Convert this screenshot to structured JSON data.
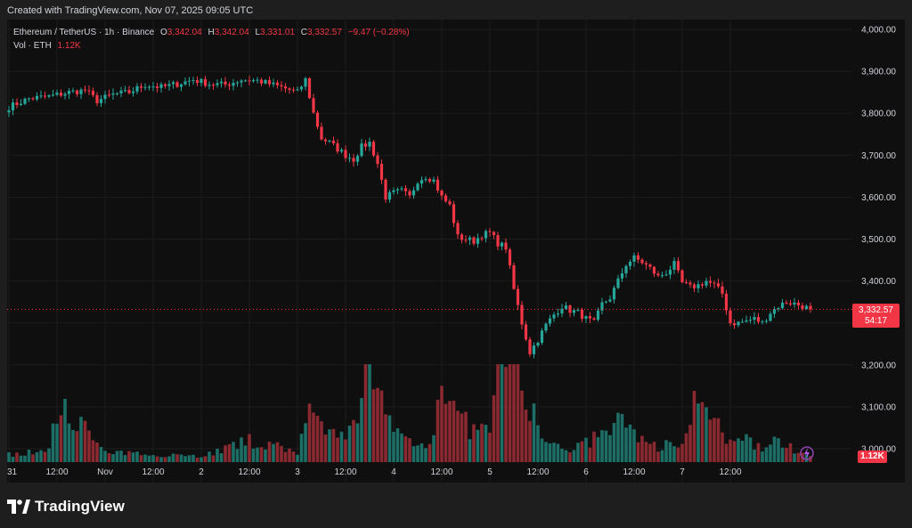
{
  "header": {
    "created_text": "Created with TradingView.com, Nov 07, 2025 09:05 UTC"
  },
  "legend": {
    "symbol": "Ethereum / TetherUS · 1h · Binance",
    "o_label": "O",
    "o_value": "3,342.04",
    "h_label": "H",
    "h_value": "3,342.04",
    "l_label": "L",
    "l_value": "3,331.01",
    "c_label": "C",
    "c_value": "3,332.57",
    "change": "−9.47 (−0.28%)",
    "vol_label": "Vol · ETH",
    "vol_value": "1.12K"
  },
  "price_badge": {
    "price": "3,332.57",
    "countdown": "54:17"
  },
  "volume_badge": {
    "value": "1.12K"
  },
  "footer": {
    "brand": "TradingView"
  },
  "colors": {
    "up": "#26a69a",
    "down": "#f23645",
    "vol_up": "#1d6e66",
    "vol_down": "#8a2a30",
    "panel": "#0f0f0f",
    "grid": "#1c1c1c",
    "axis_text": "#d1d4dc"
  },
  "chart_data": {
    "type": "candlestick",
    "symbol": "ETHUSDT",
    "interval": "1h",
    "y_axis": {
      "side": "right",
      "ylim": [
        2990,
        4010
      ],
      "ticks": [
        "4,000.00",
        "3,900.00",
        "3,800.00",
        "3,700.00",
        "3,600.00",
        "3,500.00",
        "3,400.00",
        "3,300.00",
        "3,200.00",
        "3,100.00",
        "3,000.00"
      ],
      "tick_values": [
        4000,
        3900,
        3800,
        3700,
        3600,
        3500,
        3400,
        3300,
        3200,
        3100,
        3000
      ]
    },
    "x_axis": {
      "labels": [
        "31",
        "12:00",
        "Nov",
        "12:00",
        "2",
        "12:00",
        "3",
        "12:00",
        "4",
        "12:00",
        "5",
        "12:00",
        "6",
        "12:00",
        "7",
        "12:00"
      ],
      "label_bar_index": [
        0,
        12,
        24,
        36,
        48,
        60,
        72,
        84,
        96,
        108,
        120,
        132,
        144,
        156,
        168,
        180
      ]
    },
    "last_price": 3332.57,
    "grid": true,
    "anchors": [
      [
        0,
        3815
      ],
      [
        5,
        3835
      ],
      [
        10,
        3840
      ],
      [
        15,
        3850
      ],
      [
        19,
        3855
      ],
      [
        22,
        3830
      ],
      [
        26,
        3845
      ],
      [
        30,
        3850
      ],
      [
        34,
        3868
      ],
      [
        38,
        3862
      ],
      [
        42,
        3870
      ],
      [
        46,
        3880
      ],
      [
        50,
        3870
      ],
      [
        54,
        3868
      ],
      [
        58,
        3880
      ],
      [
        62,
        3878
      ],
      [
        65,
        3870
      ],
      [
        68,
        3862
      ],
      [
        72,
        3850
      ],
      [
        74,
        3880
      ],
      [
        76,
        3800
      ],
      [
        78,
        3740
      ],
      [
        80,
        3730
      ],
      [
        82,
        3715
      ],
      [
        84,
        3700
      ],
      [
        86,
        3690
      ],
      [
        88,
        3720
      ],
      [
        90,
        3730
      ],
      [
        92,
        3680
      ],
      [
        94,
        3600
      ],
      [
        96,
        3610
      ],
      [
        98,
        3615
      ],
      [
        100,
        3600
      ],
      [
        102,
        3640
      ],
      [
        104,
        3650
      ],
      [
        106,
        3640
      ],
      [
        108,
        3600
      ],
      [
        110,
        3580
      ],
      [
        112,
        3505
      ],
      [
        114,
        3500
      ],
      [
        116,
        3495
      ],
      [
        118,
        3510
      ],
      [
        120,
        3515
      ],
      [
        122,
        3490
      ],
      [
        124,
        3480
      ],
      [
        126,
        3380
      ],
      [
        128,
        3300
      ],
      [
        130,
        3230
      ],
      [
        132,
        3260
      ],
      [
        134,
        3295
      ],
      [
        136,
        3320
      ],
      [
        138,
        3340
      ],
      [
        140,
        3330
      ],
      [
        142,
        3325
      ],
      [
        144,
        3310
      ],
      [
        146,
        3300
      ],
      [
        148,
        3345
      ],
      [
        150,
        3360
      ],
      [
        152,
        3400
      ],
      [
        154,
        3440
      ],
      [
        156,
        3455
      ],
      [
        158,
        3445
      ],
      [
        160,
        3430
      ],
      [
        162,
        3410
      ],
      [
        164,
        3420
      ],
      [
        166,
        3440
      ],
      [
        168,
        3395
      ],
      [
        170,
        3385
      ],
      [
        172,
        3390
      ],
      [
        174,
        3400
      ],
      [
        176,
        3390
      ],
      [
        178,
        3370
      ],
      [
        180,
        3300
      ],
      [
        182,
        3300
      ],
      [
        184,
        3305
      ],
      [
        186,
        3310
      ],
      [
        188,
        3300
      ],
      [
        190,
        3325
      ],
      [
        192,
        3340
      ],
      [
        194,
        3350
      ],
      [
        196,
        3346
      ],
      [
        198,
        3340
      ],
      [
        200,
        3332.57
      ]
    ],
    "volume_hints": [
      [
        0,
        10
      ],
      [
        10,
        15
      ],
      [
        13,
        88
      ],
      [
        18,
        50
      ],
      [
        24,
        12
      ],
      [
        40,
        10
      ],
      [
        48,
        8
      ],
      [
        60,
        28
      ],
      [
        72,
        14
      ],
      [
        74,
        70
      ],
      [
        78,
        40
      ],
      [
        84,
        30
      ],
      [
        88,
        68
      ],
      [
        90,
        200
      ],
      [
        92,
        90
      ],
      [
        96,
        40
      ],
      [
        100,
        30
      ],
      [
        104,
        20
      ],
      [
        106,
        50
      ],
      [
        108,
        120
      ],
      [
        110,
        75
      ],
      [
        112,
        60
      ],
      [
        116,
        40
      ],
      [
        120,
        45
      ],
      [
        122,
        130
      ],
      [
        124,
        120
      ],
      [
        125,
        140
      ],
      [
        126,
        240
      ],
      [
        128,
        90
      ],
      [
        130,
        80
      ],
      [
        132,
        45
      ],
      [
        134,
        28
      ],
      [
        136,
        20
      ],
      [
        140,
        18
      ],
      [
        144,
        25
      ],
      [
        148,
        35
      ],
      [
        150,
        42
      ],
      [
        152,
        50
      ],
      [
        154,
        60
      ],
      [
        156,
        45
      ],
      [
        158,
        28
      ],
      [
        162,
        20
      ],
      [
        166,
        25
      ],
      [
        168,
        35
      ],
      [
        170,
        60
      ],
      [
        172,
        100
      ],
      [
        174,
        70
      ],
      [
        176,
        50
      ],
      [
        180,
        25
      ],
      [
        184,
        28
      ],
      [
        188,
        20
      ],
      [
        192,
        30
      ],
      [
        196,
        15
      ],
      [
        200,
        12
      ]
    ]
  }
}
